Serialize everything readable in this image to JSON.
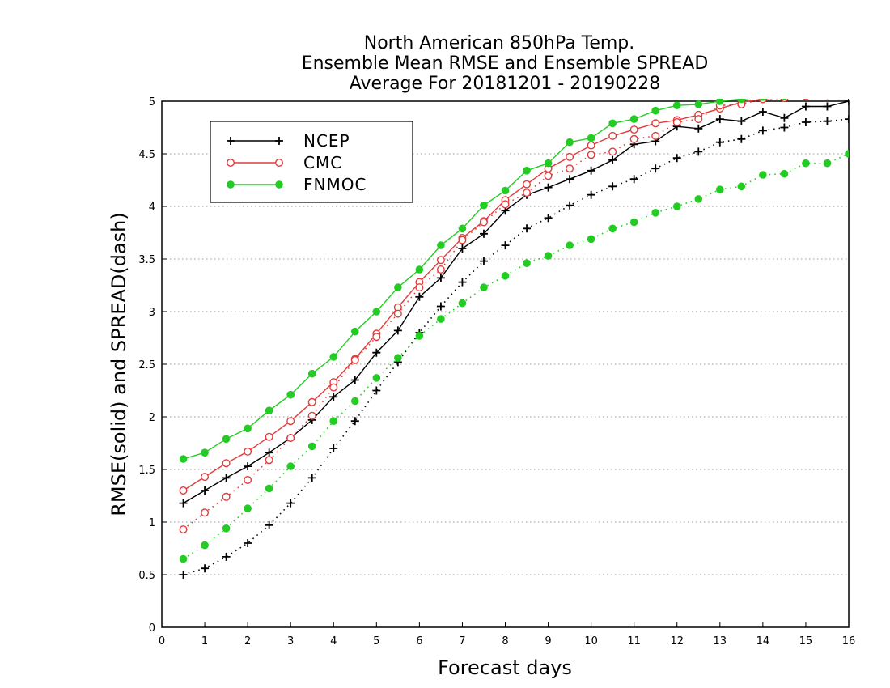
{
  "chart_data": {
    "type": "line",
    "title_lines": [
      "North American 850hPa Temp.",
      "Ensemble Mean RMSE and Ensemble SPREAD",
      "Average For 20181201 - 20190228"
    ],
    "xlabel": "Forecast days",
    "ylabel": "RMSE(solid) and SPREAD(dash)",
    "xlim": [
      0,
      16
    ],
    "ylim": [
      0,
      5
    ],
    "xticks": [
      "0",
      "1",
      "2",
      "3",
      "4",
      "5",
      "6",
      "7",
      "8",
      "9",
      "10",
      "11",
      "12",
      "13",
      "14",
      "15",
      "16"
    ],
    "yticks": [
      "0",
      "0.5",
      "1",
      "1.5",
      "2",
      "2.5",
      "3",
      "3.5",
      "4",
      "4.5",
      "5"
    ],
    "grid": "horizontal dotted",
    "legend_position": "top-left",
    "legend": [
      {
        "name": "NCEP",
        "color": "#000000",
        "marker": "plus"
      },
      {
        "name": "CMC",
        "color": "#e33b3b",
        "marker": "open-circle"
      },
      {
        "name": "FNMOC",
        "color": "#22cc22",
        "marker": "filled-circle"
      }
    ],
    "x": [
      0.5,
      1,
      1.5,
      2,
      2.5,
      3,
      3.5,
      4,
      4.5,
      5,
      5.5,
      6,
      6.5,
      7,
      7.5,
      8,
      8.5,
      9,
      9.5,
      10,
      10.5,
      11,
      11.5,
      12,
      12.5,
      13,
      13.5,
      14,
      14.5,
      15,
      15.5,
      16
    ],
    "series": [
      {
        "name": "NCEP",
        "metric": "RMSE",
        "style": "solid",
        "color": "#000000",
        "marker": "plus",
        "values": [
          1.18,
          1.3,
          1.42,
          1.53,
          1.66,
          1.8,
          1.97,
          2.19,
          2.35,
          2.61,
          2.82,
          3.14,
          3.32,
          3.6,
          3.74,
          3.96,
          4.11,
          4.18,
          4.26,
          4.34,
          4.44,
          4.59,
          4.62,
          4.76,
          4.74,
          4.83,
          4.81,
          4.9,
          4.84,
          4.95,
          4.95,
          5.0
        ]
      },
      {
        "name": "NCEP",
        "metric": "SPREAD",
        "style": "dash",
        "color": "#000000",
        "marker": "plus",
        "values": [
          0.5,
          0.56,
          0.67,
          0.8,
          0.97,
          1.18,
          1.42,
          1.7,
          1.96,
          2.25,
          2.52,
          2.8,
          3.05,
          3.28,
          3.48,
          3.63,
          3.79,
          3.89,
          4.01,
          4.11,
          4.19,
          4.26,
          4.36,
          4.46,
          4.52,
          4.61,
          4.64,
          4.72,
          4.75,
          4.8,
          4.81,
          4.83
        ]
      },
      {
        "name": "CMC",
        "metric": "RMSE",
        "style": "solid",
        "color": "#e33b3b",
        "marker": "open-circle",
        "values": [
          1.3,
          1.43,
          1.56,
          1.67,
          1.81,
          1.96,
          2.14,
          2.33,
          2.55,
          2.79,
          3.04,
          3.28,
          3.49,
          3.7,
          3.86,
          4.06,
          4.21,
          4.36,
          4.47,
          4.58,
          4.67,
          4.73,
          4.79,
          4.82,
          4.87,
          4.93,
          4.99,
          5.02,
          5.04,
          5.05,
          5.06,
          5.07
        ]
      },
      {
        "name": "CMC",
        "metric": "SPREAD",
        "style": "dash",
        "color": "#e33b3b",
        "marker": "open-circle",
        "values": [
          0.93,
          1.09,
          1.24,
          1.4,
          1.59,
          1.8,
          2.01,
          2.28,
          2.54,
          2.76,
          2.98,
          3.23,
          3.4,
          3.68,
          3.85,
          4.02,
          4.13,
          4.29,
          4.36,
          4.49,
          4.52,
          4.64,
          4.67,
          4.8,
          4.83,
          4.96,
          4.97,
          5.02,
          5.03,
          5.05,
          5.06,
          5.07
        ]
      },
      {
        "name": "FNMOC",
        "metric": "RMSE",
        "style": "solid",
        "color": "#22cc22",
        "marker": "filled-circle",
        "values": [
          1.6,
          1.66,
          1.79,
          1.89,
          2.06,
          2.21,
          2.41,
          2.57,
          2.81,
          3.0,
          3.23,
          3.4,
          3.63,
          3.79,
          4.01,
          4.15,
          4.34,
          4.41,
          4.61,
          4.65,
          4.79,
          4.83,
          4.91,
          4.96,
          4.97,
          5.0,
          5.02,
          5.04,
          5.05,
          5.06,
          5.07,
          5.08
        ]
      },
      {
        "name": "FNMOC",
        "metric": "SPREAD",
        "style": "dash",
        "color": "#22cc22",
        "marker": "filled-circle",
        "values": [
          0.65,
          0.78,
          0.94,
          1.13,
          1.32,
          1.53,
          1.72,
          1.96,
          2.15,
          2.37,
          2.56,
          2.77,
          2.93,
          3.08,
          3.23,
          3.34,
          3.46,
          3.53,
          3.63,
          3.69,
          3.79,
          3.85,
          3.94,
          4.0,
          4.07,
          4.16,
          4.19,
          4.3,
          4.31,
          4.41,
          4.41,
          4.5
        ]
      }
    ]
  }
}
